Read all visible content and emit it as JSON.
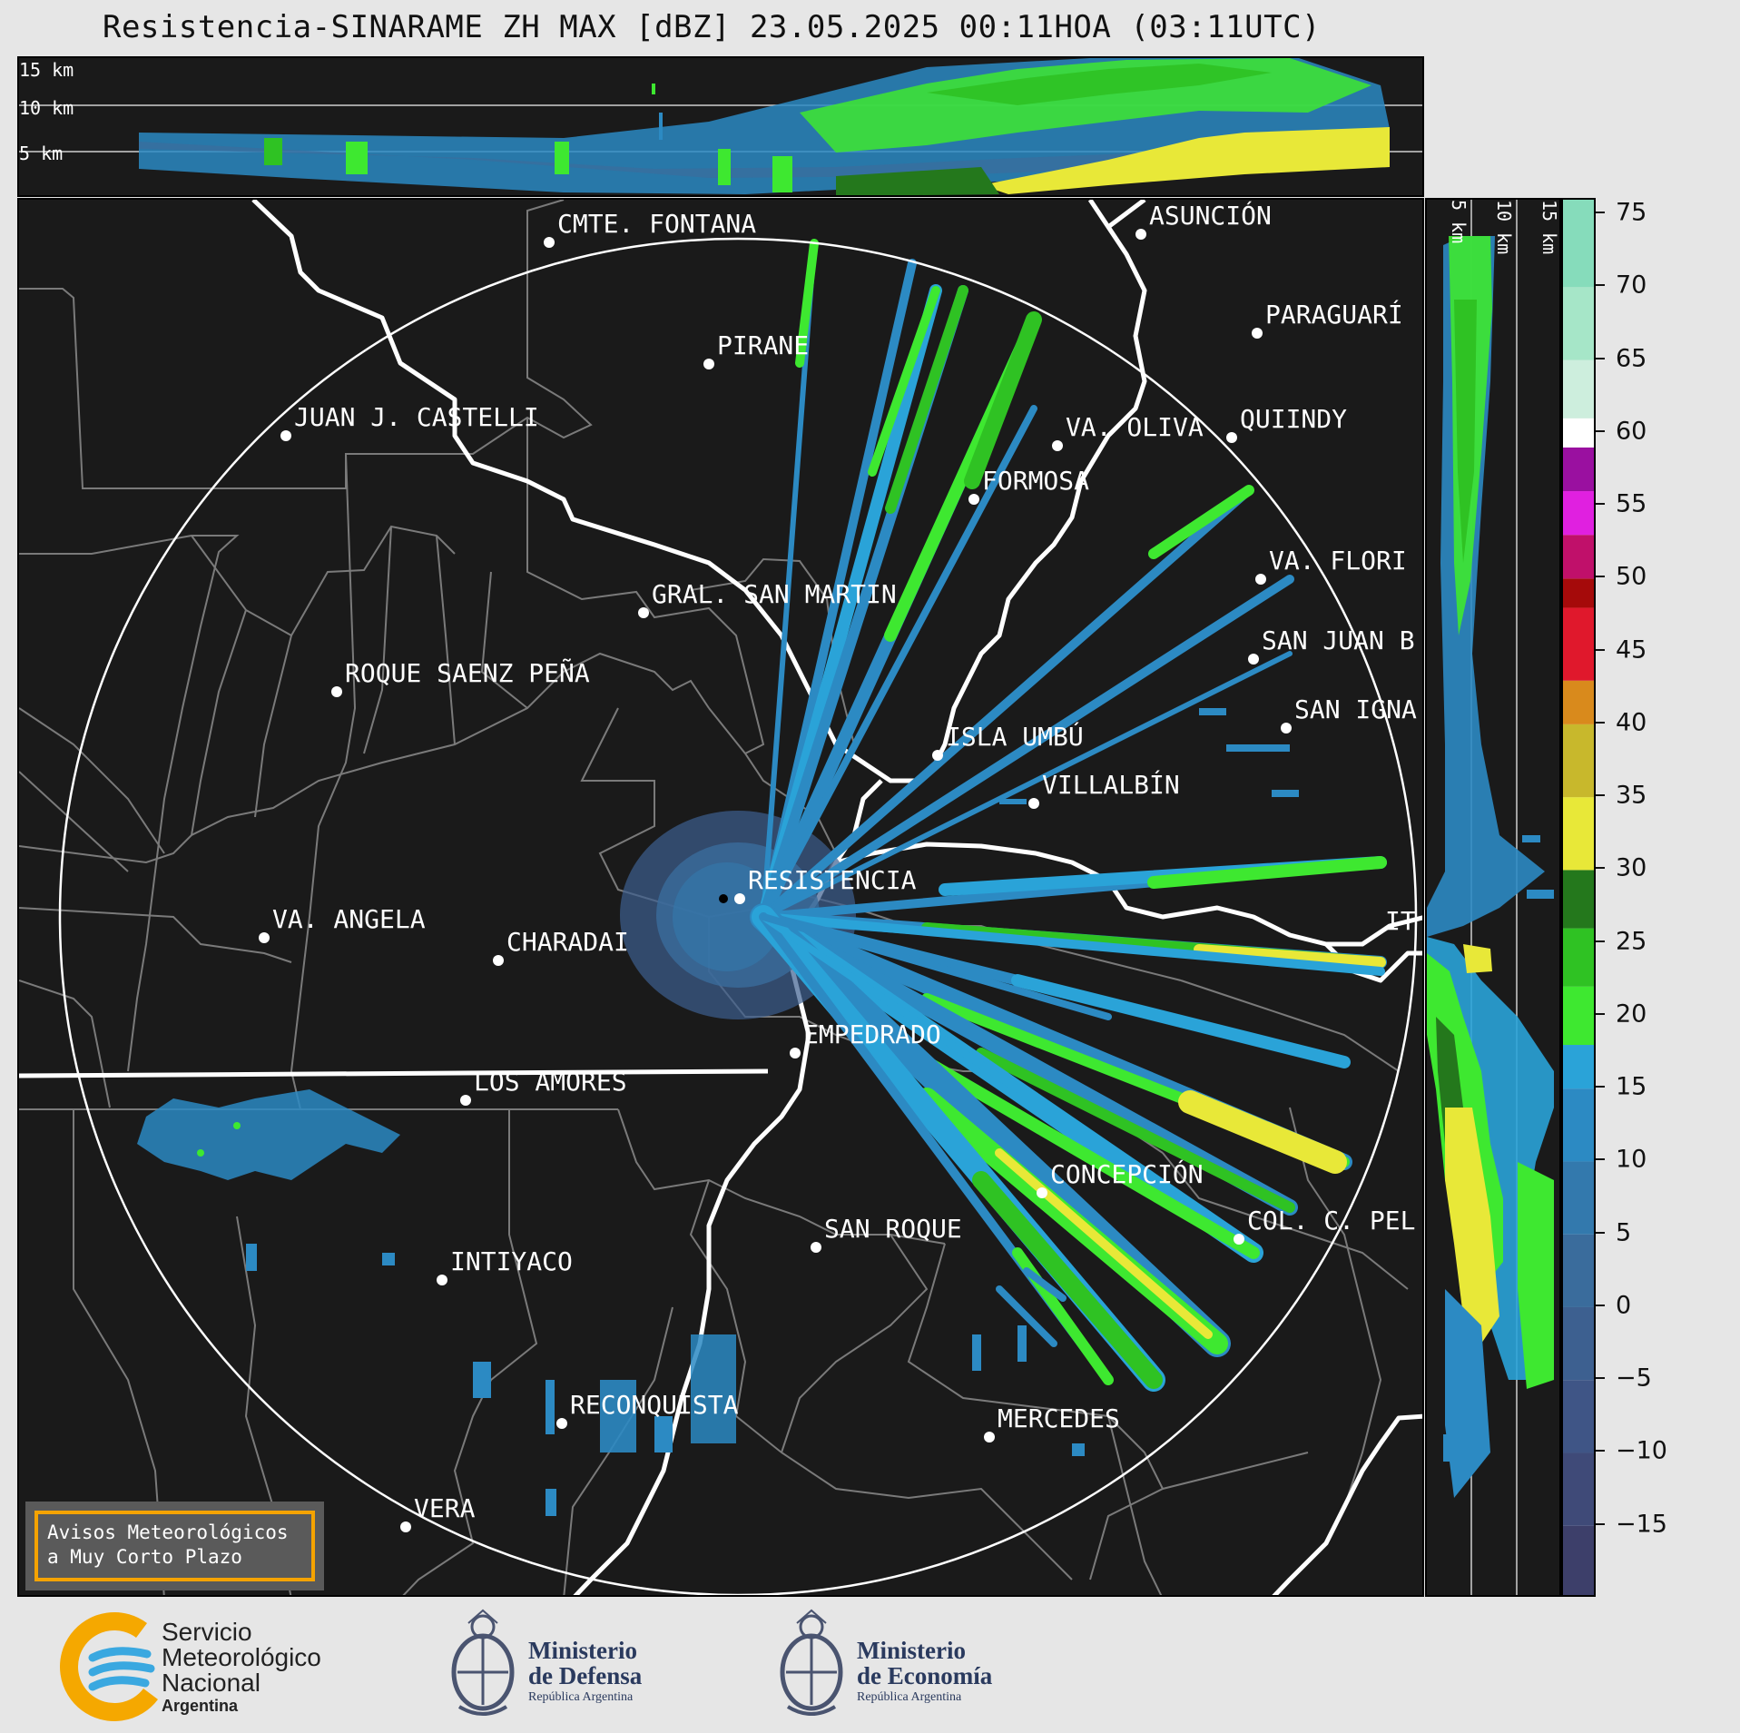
{
  "title": "Resistencia-SINARAME ZH MAX [dBZ] 23.05.2025 00:11HOA (03:11UTC)",
  "top_panel": {
    "height_labels": [
      "15 km",
      "10 km",
      "5 km"
    ]
  },
  "side_panel": {
    "height_labels": [
      "5 km",
      "10 km",
      "15 km"
    ]
  },
  "colorbar": {
    "unit": "dBZ",
    "ticks": [
      "75",
      "70",
      "65",
      "60",
      "55",
      "50",
      "45",
      "40",
      "35",
      "30",
      "25",
      "20",
      "15",
      "10",
      "5",
      "0",
      "−5",
      "−10",
      "−15"
    ],
    "range": [
      -20,
      76
    ],
    "bands": [
      {
        "from": -20,
        "to": -15,
        "color": "#3d3f6a"
      },
      {
        "from": -15,
        "to": -10,
        "color": "#3f4a78"
      },
      {
        "from": -10,
        "to": -5,
        "color": "#3f5586"
      },
      {
        "from": -5,
        "to": 0,
        "color": "#3d6090"
      },
      {
        "from": 0,
        "to": 5,
        "color": "#3a6c9c"
      },
      {
        "from": 5,
        "to": 10,
        "color": "#3379ad"
      },
      {
        "from": 10,
        "to": 15,
        "color": "#2c8ac3"
      },
      {
        "from": 15,
        "to": 18,
        "color": "#2aa3d8"
      },
      {
        "from": 18,
        "to": 22,
        "color": "#3ee830"
      },
      {
        "from": 22,
        "to": 26,
        "color": "#2fc223"
      },
      {
        "from": 26,
        "to": 30,
        "color": "#24781c"
      },
      {
        "from": 30,
        "to": 35,
        "color": "#e8e838"
      },
      {
        "from": 35,
        "to": 40,
        "color": "#c8b82c"
      },
      {
        "from": 40,
        "to": 43,
        "color": "#d98a1c"
      },
      {
        "from": 43,
        "to": 48,
        "color": "#e0182c"
      },
      {
        "from": 48,
        "to": 50,
        "color": "#a50a0a"
      },
      {
        "from": 50,
        "to": 53,
        "color": "#c0106a"
      },
      {
        "from": 53,
        "to": 56,
        "color": "#e020e0"
      },
      {
        "from": 56,
        "to": 59,
        "color": "#9a10a0"
      },
      {
        "from": 59,
        "to": 61,
        "color": "#ffffff"
      },
      {
        "from": 61,
        "to": 65,
        "color": "#cdeedd"
      },
      {
        "from": 65,
        "to": 70,
        "color": "#a6e6c8"
      },
      {
        "from": 70,
        "to": 76,
        "color": "#86dcbb"
      }
    ]
  },
  "map": {
    "radar_site": "RESISTENCIA",
    "range_ring": "circle",
    "cities": [
      {
        "name": "CMTE. FONTANA"
      },
      {
        "name": "ASUNCIÓN"
      },
      {
        "name": "PARAGUARÍ"
      },
      {
        "name": "PIRANE"
      },
      {
        "name": "JUAN J. CASTELLI"
      },
      {
        "name": "VA. OLIVA"
      },
      {
        "name": "QUIINDY"
      },
      {
        "name": "FORMOSA"
      },
      {
        "name": "VA. FLORI"
      },
      {
        "name": "GRAL. SAN MARTIN"
      },
      {
        "name": "SAN JUAN B"
      },
      {
        "name": "ROQUE SAENZ PEÑA"
      },
      {
        "name": "SAN IGNA"
      },
      {
        "name": "ISLA UMBÚ"
      },
      {
        "name": "VILLALBÍN"
      },
      {
        "name": "RESISTENCIA"
      },
      {
        "name": "VA. ANGELA"
      },
      {
        "name": "CHARADAI"
      },
      {
        "name": "IT"
      },
      {
        "name": "EMPEDRADO"
      },
      {
        "name": "LOS AMORES"
      },
      {
        "name": "CONCEPCIÓN"
      },
      {
        "name": "COL. C. PEL"
      },
      {
        "name": "SAN ROQUE"
      },
      {
        "name": "INTIYACO"
      },
      {
        "name": "RECONQUISTA"
      },
      {
        "name": "MERCEDES"
      },
      {
        "name": "VERA"
      }
    ]
  },
  "warning": {
    "line1": "Avisos Meteorológicos",
    "line2": "a Muy Corto Plazo"
  },
  "logos": {
    "smn": {
      "line1": "Servicio",
      "line2": "Meteorológico",
      "line3": "Nacional",
      "line4": "Argentina",
      "icon": "smn-logo-icon"
    },
    "defensa": {
      "line1": "Ministerio",
      "line2": "de Defensa",
      "line3": "República Argentina",
      "icon": "coat-of-arms-icon"
    },
    "economia": {
      "line1": "Ministerio",
      "line2": "de Economía",
      "line3": "República Argentina",
      "icon": "coat-of-arms-icon"
    }
  }
}
